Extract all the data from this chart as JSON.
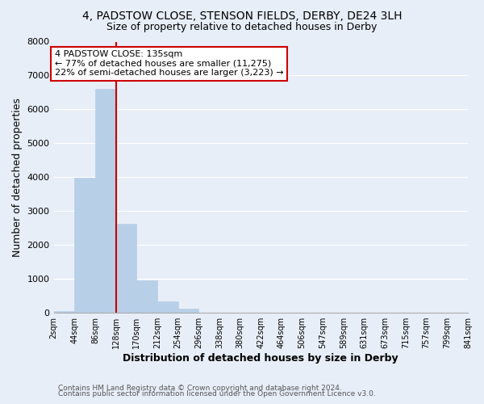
{
  "title1": "4, PADSTOW CLOSE, STENSON FIELDS, DERBY, DE24 3LH",
  "title2": "Size of property relative to detached houses in Derby",
  "xlabel": "Distribution of detached houses by size in Derby",
  "ylabel": "Number of detached properties",
  "bin_labels": [
    "2sqm",
    "44sqm",
    "86sqm",
    "128sqm",
    "170sqm",
    "212sqm",
    "254sqm",
    "296sqm",
    "338sqm",
    "380sqm",
    "422sqm",
    "464sqm",
    "506sqm",
    "547sqm",
    "589sqm",
    "631sqm",
    "673sqm",
    "715sqm",
    "757sqm",
    "799sqm",
    "841sqm"
  ],
  "bar_values": [
    60,
    3980,
    6600,
    2620,
    960,
    330,
    130,
    0,
    0,
    0,
    0,
    0,
    0,
    0,
    0,
    0,
    0,
    0,
    0,
    0
  ],
  "bar_color": "#b8cfe8",
  "bar_edge_color": "#b8cfe8",
  "property_line_x": 3,
  "property_line_color": "#cc0000",
  "ylim": [
    0,
    8000
  ],
  "yticks": [
    0,
    1000,
    2000,
    3000,
    4000,
    5000,
    6000,
    7000,
    8000
  ],
  "annotation_text": "4 PADSTOW CLOSE: 135sqm\n← 77% of detached houses are smaller (11,275)\n22% of semi-detached houses are larger (3,223) →",
  "annotation_box_color": "#ffffff",
  "annotation_box_edge": "#cc0000",
  "footer1": "Contains HM Land Registry data © Crown copyright and database right 2024.",
  "footer2": "Contains public sector information licensed under the Open Government Licence v3.0.",
  "background_color": "#e8eef8",
  "grid_color": "#ffffff"
}
